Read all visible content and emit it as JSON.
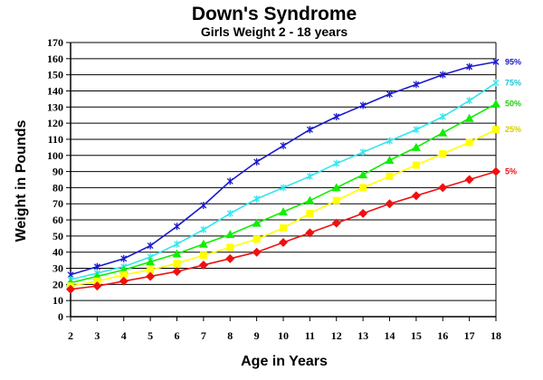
{
  "chart_data": {
    "type": "line",
    "title": "Down's Syndrome",
    "subtitle": "Girls Weight 2 - 18 years",
    "xlabel": "Age in Years",
    "ylabel": "Weight in Pounds",
    "xlim": [
      2,
      18
    ],
    "ylim": [
      0,
      170
    ],
    "x": [
      2,
      3,
      4,
      5,
      6,
      7,
      8,
      9,
      10,
      11,
      12,
      13,
      14,
      15,
      16,
      17,
      18
    ],
    "x_ticks": [
      "2",
      "3",
      "4",
      "5",
      "6",
      "7",
      "8",
      "9",
      "10",
      "11",
      "12",
      "13",
      "14",
      "15",
      "16",
      "17",
      "18"
    ],
    "y_ticks": [
      "0",
      "10",
      "20",
      "30",
      "40",
      "50",
      "60",
      "70",
      "80",
      "90",
      "100",
      "110",
      "120",
      "130",
      "140",
      "150",
      "160",
      "170"
    ],
    "grid": "horizontal",
    "series": [
      {
        "name": "95%",
        "color": "#1a1acc",
        "label_color": "#1a1acc",
        "marker": "star",
        "values": [
          26,
          31,
          36,
          44,
          56,
          69,
          84,
          96,
          106,
          116,
          124,
          131,
          138,
          144,
          150,
          155,
          158
        ]
      },
      {
        "name": "75%",
        "color": "#33e5ef",
        "label_color": "#22c4d4",
        "marker": "star",
        "values": [
          23,
          27,
          31,
          37,
          45,
          54,
          64,
          73,
          80,
          87,
          95,
          102,
          109,
          116,
          124,
          134,
          145
        ]
      },
      {
        "name": "50%",
        "color": "#11ee00",
        "label_color": "#22cc11",
        "marker": "triangle",
        "values": [
          21,
          25,
          29,
          34,
          39,
          45,
          51,
          58,
          65,
          72,
          80,
          88,
          97,
          105,
          114,
          123,
          132
        ]
      },
      {
        "name": "25%",
        "color": "#ffff00",
        "label_color": "#d6cc00",
        "marker": "square",
        "values": [
          19,
          22,
          26,
          29,
          33,
          38,
          43,
          48,
          55,
          64,
          72,
          80,
          87,
          94,
          101,
          108,
          116
        ]
      },
      {
        "name": "5%",
        "color": "#ee1111",
        "label_color": "#ee1111",
        "marker": "diamond",
        "values": [
          17,
          19,
          22,
          25,
          28,
          32,
          36,
          40,
          46,
          52,
          58,
          64,
          70,
          75,
          80,
          85,
          90
        ]
      }
    ]
  }
}
